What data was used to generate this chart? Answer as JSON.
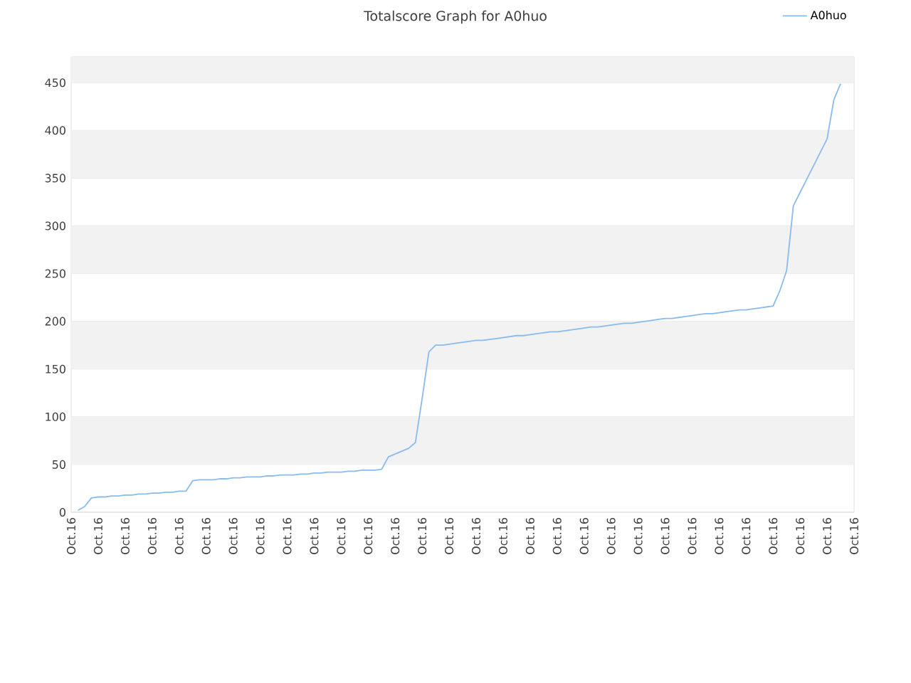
{
  "chart_data": {
    "type": "line",
    "title": "Totalscore Graph for A0huo",
    "categories": [
      "Oct.16",
      null,
      null,
      null,
      "Oct.16",
      null,
      null,
      null,
      "Oct.16",
      null,
      null,
      null,
      "Oct.16",
      null,
      null,
      null,
      "Oct.16",
      null,
      null,
      null,
      "Oct.16",
      null,
      null,
      null,
      "Oct.16",
      null,
      null,
      null,
      "Oct.16",
      null,
      null,
      null,
      "Oct.16",
      null,
      null,
      null,
      "Oct.16",
      null,
      null,
      null,
      "Oct.16",
      null,
      null,
      null,
      "Oct.16",
      null,
      null,
      null,
      "Oct.16",
      null,
      null,
      null,
      "Oct.16",
      null,
      null,
      null,
      "Oct.16",
      null,
      null,
      null,
      "Oct.16",
      null,
      null,
      null,
      "Oct.16",
      null,
      null,
      null,
      "Oct.16",
      null,
      null,
      null,
      "Oct.16",
      null,
      null,
      null,
      "Oct.16",
      null,
      null,
      null,
      "Oct.16",
      null,
      null,
      null,
      "Oct.16",
      null,
      null,
      null,
      "Oct.16",
      null,
      null,
      null,
      "Oct.16",
      null,
      null,
      null,
      "Oct.16",
      null,
      null,
      null,
      "Oct.16",
      null,
      null,
      null,
      "Oct.16",
      null,
      null,
      null,
      "Oct.16",
      null,
      null,
      null,
      "Oct.16",
      null,
      null,
      null,
      "Oct.16"
    ],
    "series": [
      {
        "name": "A0huo",
        "color": "#88bbee",
        "values": [
          null,
          2,
          6,
          15,
          16,
          16,
          17,
          17,
          18,
          18,
          19,
          19,
          20,
          20,
          21,
          21,
          22,
          22,
          33,
          34,
          34,
          34,
          35,
          35,
          36,
          36,
          37,
          37,
          37,
          38,
          38,
          39,
          39,
          39,
          40,
          40,
          41,
          41,
          42,
          42,
          42,
          43,
          43,
          44,
          44,
          44,
          45,
          58,
          61,
          64,
          67,
          73,
          119,
          168,
          175,
          175,
          176,
          177,
          178,
          179,
          180,
          180,
          181,
          182,
          183,
          184,
          185,
          185,
          186,
          187,
          188,
          189,
          189,
          190,
          191,
          192,
          193,
          194,
          194,
          195,
          196,
          197,
          198,
          198,
          199,
          200,
          201,
          202,
          203,
          203,
          204,
          205,
          206,
          207,
          208,
          208,
          209,
          210,
          211,
          212,
          212,
          213,
          214,
          215,
          216,
          232,
          253,
          321,
          335,
          349,
          363,
          377,
          391,
          432,
          449,
          null,
          null
        ]
      }
    ],
    "ylim": [
      0,
      477
    ],
    "yticks": [
      0,
      50,
      100,
      150,
      200,
      250,
      300,
      350,
      400,
      450
    ],
    "grid": "y",
    "legend": "top right",
    "marker": "none",
    "line_style": "solid"
  }
}
